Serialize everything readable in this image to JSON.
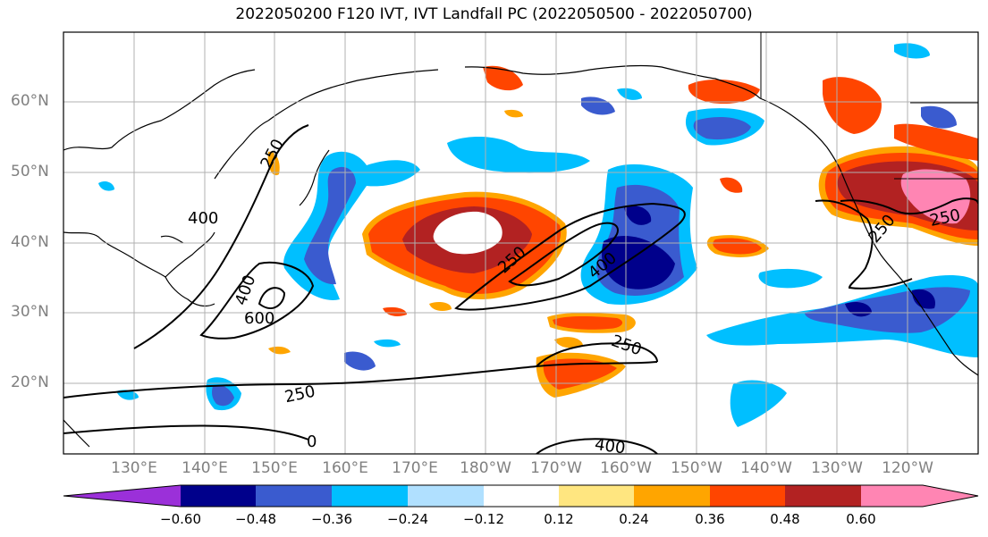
{
  "title": "2022050200 F120 IVT, IVT Landfall PC (2022050500 - 2022050700)",
  "latitude_labels": [
    "60°N",
    "50°N",
    "40°N",
    "30°N",
    "20°N"
  ],
  "longitude_labels": [
    "130°E",
    "140°E",
    "150°E",
    "160°E",
    "170°E",
    "180°W",
    "170°W",
    "160°W",
    "150°W",
    "140°W",
    "130°W",
    "120°W"
  ],
  "contour_labels": {
    "c250_nw": "250",
    "c400_w": "400",
    "c400_sw": "400",
    "c600": "600",
    "c250_center": "250",
    "c400_center": "400",
    "c250_e": "250",
    "c250_ne_a": "250",
    "c250_ne_b": "250",
    "c250_s": "250",
    "c400_s": "400",
    "c0": "0"
  },
  "colorbar": {
    "ticks": [
      "−0.60",
      "−0.48",
      "−0.36",
      "−0.24",
      "−0.12",
      "0.12",
      "0.24",
      "0.36",
      "0.48",
      "0.60"
    ],
    "colors": [
      "#9b30d9",
      "#00008b",
      "#3a5bcf",
      "#00bfff",
      "#b0e0ff",
      "#ffffff",
      "#ffe680",
      "#ffa500",
      "#ff4500",
      "#b22222",
      "#ff85b3"
    ]
  },
  "colors": {
    "dark_navy": "#00008b",
    "royal_blue": "#3a5bcf",
    "sky_blue": "#00bfff",
    "pale_blue": "#b0e0ff",
    "light_yellow": "#ffe680",
    "orange": "#ffa500",
    "red_orange": "#ff4500",
    "dark_red": "#b22222",
    "pink": "#ff85b3"
  }
}
